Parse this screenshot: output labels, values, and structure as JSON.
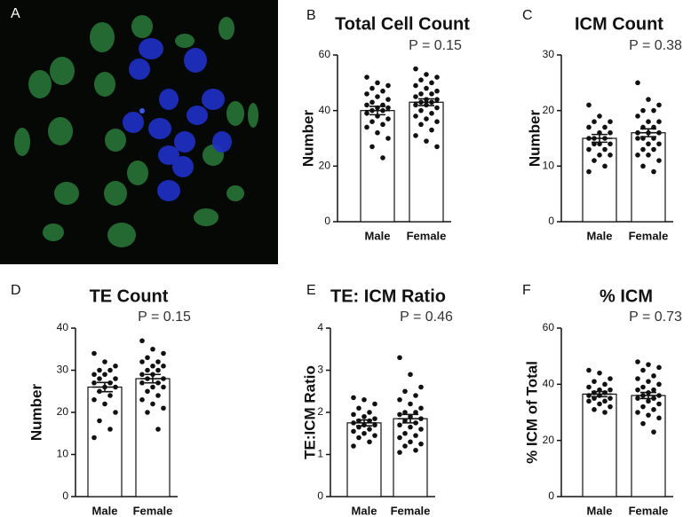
{
  "image_panel": {
    "label": "A"
  },
  "chart_data": [
    {
      "type": "bar",
      "label": "B",
      "title": "Total Cell Count",
      "annotation": "P = 0.15",
      "y_label": "Number",
      "categories": [
        "Male",
        "Female"
      ],
      "values": [
        40,
        43
      ],
      "errors": [
        1.5,
        1.2
      ],
      "points": [
        [
          52,
          50,
          49,
          48,
          47,
          46,
          45,
          44,
          43,
          42,
          42,
          41,
          41,
          40,
          40,
          39,
          38,
          37,
          36,
          35,
          34,
          32,
          30,
          27,
          23
        ],
        [
          55,
          53,
          52,
          51,
          50,
          49,
          48,
          47,
          46,
          46,
          45,
          44,
          44,
          43,
          43,
          42,
          42,
          41,
          40,
          39,
          38,
          37,
          36,
          35,
          33,
          31,
          29,
          27
        ]
      ],
      "ylim": [
        0,
        60
      ],
      "yticks": [
        0,
        20,
        40,
        60
      ]
    },
    {
      "type": "bar",
      "label": "C",
      "title": "ICM Count",
      "annotation": "P = 0.38",
      "y_label": "Number",
      "categories": [
        "Male",
        "Female"
      ],
      "values": [
        15,
        16
      ],
      "errors": [
        0.7,
        0.7
      ],
      "points": [
        [
          21,
          19,
          18,
          18,
          17,
          17,
          16,
          16,
          15,
          15,
          15,
          14,
          14,
          14,
          13,
          13,
          12,
          12,
          11,
          10,
          9
        ],
        [
          25,
          22,
          21,
          20,
          20,
          19,
          18,
          18,
          17,
          17,
          16,
          16,
          16,
          15,
          15,
          15,
          14,
          14,
          13,
          13,
          12,
          12,
          11,
          10,
          9
        ]
      ],
      "ylim": [
        0,
        30
      ],
      "yticks": [
        0,
        10,
        20,
        30
      ]
    },
    {
      "type": "bar",
      "label": "D",
      "title": "TE Count",
      "annotation": "P = 0.15",
      "y_label": "Number",
      "categories": [
        "Male",
        "Female"
      ],
      "values": [
        26,
        28
      ],
      "errors": [
        1.1,
        1.0
      ],
      "points": [
        [
          34,
          32,
          31,
          30,
          30,
          29,
          29,
          28,
          28,
          27,
          27,
          26,
          26,
          25,
          24,
          23,
          22,
          20,
          18,
          16,
          14
        ],
        [
          37,
          35,
          34,
          33,
          32,
          32,
          31,
          31,
          30,
          30,
          29,
          29,
          28,
          28,
          27,
          27,
          26,
          26,
          25,
          24,
          23,
          22,
          21,
          20,
          16
        ]
      ],
      "ylim": [
        0,
        40
      ],
      "yticks": [
        0,
        10,
        20,
        30,
        40
      ]
    },
    {
      "type": "bar",
      "label": "E",
      "title": "TE: ICM Ratio",
      "annotation": "P = 0.46",
      "y_label": "TE:ICM Ratio",
      "categories": [
        "Male",
        "Female"
      ],
      "values": [
        1.75,
        1.85
      ],
      "errors": [
        0.07,
        0.1
      ],
      "points": [
        [
          2.35,
          2.3,
          2.2,
          2.1,
          2.0,
          1.95,
          1.9,
          1.85,
          1.8,
          1.8,
          1.75,
          1.7,
          1.7,
          1.65,
          1.6,
          1.55,
          1.5,
          1.45,
          1.4,
          1.3,
          1.2
        ],
        [
          3.3,
          2.9,
          2.6,
          2.5,
          2.4,
          2.3,
          2.2,
          2.1,
          2.0,
          2.0,
          1.95,
          1.9,
          1.85,
          1.8,
          1.75,
          1.7,
          1.65,
          1.6,
          1.5,
          1.45,
          1.4,
          1.3,
          1.25,
          1.2,
          1.1,
          1.05
        ]
      ],
      "ylim": [
        0,
        4
      ],
      "yticks": [
        0,
        1,
        2,
        3,
        4
      ]
    },
    {
      "type": "bar",
      "label": "F",
      "title": "% ICM",
      "annotation": "P = 0.73",
      "y_label": "% ICM of Total",
      "categories": [
        "Male",
        "Female"
      ],
      "values": [
        36.5,
        36
      ],
      "errors": [
        0.9,
        1.1
      ],
      "points": [
        [
          45,
          44,
          42,
          41,
          40,
          39,
          38,
          38,
          37,
          37,
          36,
          36,
          35,
          35,
          34,
          34,
          33,
          32,
          31,
          30
        ],
        [
          48,
          47,
          46,
          45,
          43,
          42,
          41,
          40,
          39,
          38,
          38,
          37,
          36,
          36,
          35,
          35,
          34,
          33,
          32,
          31,
          30,
          29,
          28,
          26,
          23
        ]
      ],
      "ylim": [
        0,
        60
      ],
      "yticks": [
        0,
        20,
        40,
        60
      ]
    }
  ]
}
